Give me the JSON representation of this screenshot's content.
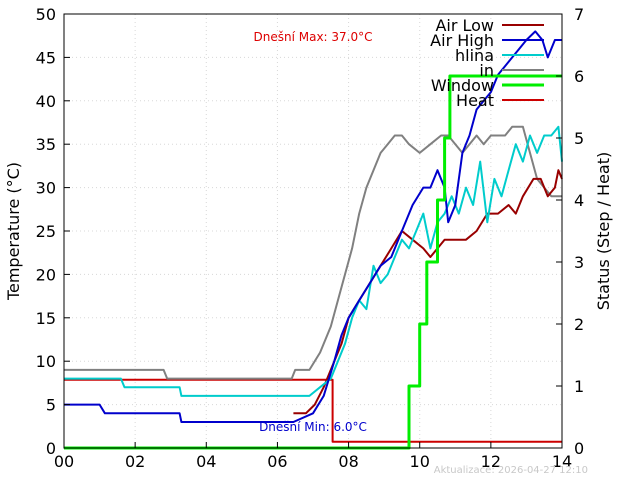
{
  "chart_data": {
    "type": "line",
    "xlabel": "",
    "ylabel": "Temperature (°C)",
    "y2label": "Status (Step / Heat)",
    "xlim": [
      0,
      14
    ],
    "ylim": [
      0,
      50
    ],
    "y2lim": [
      0,
      7
    ],
    "x_ticks": [
      "00",
      "02",
      "04",
      "06",
      "08",
      "10",
      "12",
      "14"
    ],
    "y_ticks": [
      "0",
      "5",
      "10",
      "15",
      "20",
      "25",
      "30",
      "35",
      "40",
      "45",
      "50"
    ],
    "y2_ticks": [
      "0",
      "1",
      "2",
      "3",
      "4",
      "5",
      "6",
      "7"
    ],
    "grid": true,
    "legend_position": "top-right",
    "annotations": {
      "max_text": "Dnešní Max: 37.0°C",
      "min_text": "Dnešní Min: 6.0°C",
      "updated_text": "Aktualizace: 2026-04-27 12:10"
    },
    "colors": {
      "air_low": "#990000",
      "air_high": "#0000cc",
      "hlina": "#00cccc",
      "in": "#808080",
      "window": "#00ee00",
      "heat": "#cc0000",
      "max_text": "#dd0000",
      "min_text": "#0000cc",
      "updated_text": "#c8c8c8"
    },
    "series": [
      {
        "name": "Air Low",
        "axis": "y",
        "points": [
          [
            6.45,
            4
          ],
          [
            6.8,
            4
          ],
          [
            7.05,
            5
          ],
          [
            7.3,
            7
          ],
          [
            7.6,
            10
          ],
          [
            7.8,
            12
          ],
          [
            8.0,
            15
          ],
          [
            8.3,
            17
          ],
          [
            8.6,
            19
          ],
          [
            8.9,
            21
          ],
          [
            9.2,
            23
          ],
          [
            9.5,
            25
          ],
          [
            9.8,
            24
          ],
          [
            10.1,
            23
          ],
          [
            10.3,
            22
          ],
          [
            10.5,
            23
          ],
          [
            10.7,
            24
          ],
          [
            11.0,
            24
          ],
          [
            11.3,
            24
          ],
          [
            11.6,
            25
          ],
          [
            11.9,
            27
          ],
          [
            12.2,
            27
          ],
          [
            12.5,
            28
          ],
          [
            12.7,
            27
          ],
          [
            12.9,
            29
          ],
          [
            13.2,
            31
          ],
          [
            13.4,
            31
          ],
          [
            13.6,
            29
          ],
          [
            13.8,
            30
          ],
          [
            13.9,
            32
          ],
          [
            14.0,
            31
          ]
        ]
      },
      {
        "name": "Air High",
        "axis": "y",
        "points": [
          [
            0,
            5
          ],
          [
            1.0,
            5
          ],
          [
            1.15,
            4
          ],
          [
            3.25,
            4
          ],
          [
            3.3,
            3
          ],
          [
            6.45,
            3
          ],
          [
            7.0,
            4
          ],
          [
            7.3,
            6
          ],
          [
            7.6,
            10
          ],
          [
            7.8,
            13
          ],
          [
            8.0,
            15
          ],
          [
            8.3,
            17
          ],
          [
            8.6,
            19
          ],
          [
            8.9,
            21
          ],
          [
            9.2,
            22
          ],
          [
            9.5,
            25
          ],
          [
            9.8,
            28
          ],
          [
            10.1,
            30
          ],
          [
            10.3,
            30
          ],
          [
            10.5,
            32
          ],
          [
            10.7,
            30
          ],
          [
            10.8,
            26
          ],
          [
            11.0,
            28
          ],
          [
            11.2,
            34
          ],
          [
            11.4,
            36
          ],
          [
            11.6,
            39
          ],
          [
            11.8,
            40
          ],
          [
            12.0,
            41
          ],
          [
            12.2,
            43
          ],
          [
            12.4,
            44
          ],
          [
            12.6,
            45
          ],
          [
            12.8,
            46
          ],
          [
            13.0,
            47
          ],
          [
            13.25,
            48
          ],
          [
            13.45,
            47
          ],
          [
            13.6,
            45
          ],
          [
            13.8,
            47
          ],
          [
            14.0,
            47
          ]
        ]
      },
      {
        "name": "hlina",
        "axis": "y",
        "points": [
          [
            0,
            8
          ],
          [
            1.6,
            8
          ],
          [
            1.7,
            7
          ],
          [
            3.25,
            7
          ],
          [
            3.3,
            6
          ],
          [
            6.9,
            6
          ],
          [
            7.2,
            7
          ],
          [
            7.5,
            8
          ],
          [
            7.7,
            10
          ],
          [
            7.9,
            12
          ],
          [
            8.1,
            15
          ],
          [
            8.3,
            17
          ],
          [
            8.5,
            16
          ],
          [
            8.7,
            21
          ],
          [
            8.9,
            19
          ],
          [
            9.1,
            20
          ],
          [
            9.3,
            22
          ],
          [
            9.5,
            24
          ],
          [
            9.7,
            23
          ],
          [
            9.9,
            25
          ],
          [
            10.1,
            27
          ],
          [
            10.3,
            23
          ],
          [
            10.5,
            26
          ],
          [
            10.7,
            27
          ],
          [
            10.9,
            29
          ],
          [
            11.1,
            27
          ],
          [
            11.3,
            30
          ],
          [
            11.5,
            28
          ],
          [
            11.7,
            33
          ],
          [
            11.9,
            26
          ],
          [
            12.1,
            31
          ],
          [
            12.3,
            29
          ],
          [
            12.5,
            32
          ],
          [
            12.7,
            35
          ],
          [
            12.9,
            33
          ],
          [
            13.1,
            36
          ],
          [
            13.3,
            34
          ],
          [
            13.5,
            36
          ],
          [
            13.7,
            36
          ],
          [
            13.9,
            37
          ],
          [
            14.0,
            33
          ]
        ]
      },
      {
        "name": "in",
        "axis": "y",
        "points": [
          [
            0,
            9
          ],
          [
            2.8,
            9
          ],
          [
            2.9,
            8
          ],
          [
            6.4,
            8
          ],
          [
            6.5,
            9
          ],
          [
            6.9,
            9
          ],
          [
            7.2,
            11
          ],
          [
            7.5,
            14
          ],
          [
            7.7,
            17
          ],
          [
            7.9,
            20
          ],
          [
            8.1,
            23
          ],
          [
            8.3,
            27
          ],
          [
            8.5,
            30
          ],
          [
            8.7,
            32
          ],
          [
            8.9,
            34
          ],
          [
            9.1,
            35
          ],
          [
            9.3,
            36
          ],
          [
            9.5,
            36
          ],
          [
            9.7,
            35
          ],
          [
            10.0,
            34
          ],
          [
            10.3,
            35
          ],
          [
            10.6,
            36
          ],
          [
            10.8,
            36
          ],
          [
            11.0,
            35
          ],
          [
            11.2,
            34
          ],
          [
            11.4,
            35
          ],
          [
            11.6,
            36
          ],
          [
            11.8,
            35
          ],
          [
            12.0,
            36
          ],
          [
            12.2,
            36
          ],
          [
            12.4,
            36
          ],
          [
            12.6,
            37
          ],
          [
            12.9,
            37
          ],
          [
            13.1,
            34
          ],
          [
            13.3,
            31
          ],
          [
            13.5,
            30
          ],
          [
            13.7,
            29
          ],
          [
            14.0,
            29
          ]
        ]
      },
      {
        "name": "Window",
        "axis": "y2",
        "points": [
          [
            0,
            0
          ],
          [
            9.7,
            0
          ],
          [
            9.7,
            1
          ],
          [
            10.0,
            1
          ],
          [
            10.0,
            2
          ],
          [
            10.2,
            2
          ],
          [
            10.2,
            3
          ],
          [
            10.5,
            3
          ],
          [
            10.5,
            4
          ],
          [
            10.7,
            4
          ],
          [
            10.7,
            5
          ],
          [
            10.85,
            5
          ],
          [
            10.85,
            6
          ],
          [
            14.0,
            6
          ]
        ]
      },
      {
        "name": "Heat",
        "axis": "y2",
        "points": [
          [
            0,
            1.1
          ],
          [
            7.55,
            1.1
          ],
          [
            7.55,
            0.1
          ],
          [
            14.0,
            0.1
          ]
        ]
      }
    ]
  }
}
